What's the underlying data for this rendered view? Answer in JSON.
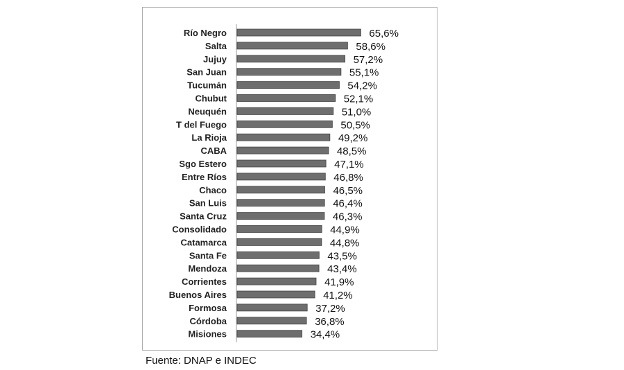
{
  "chart_data": {
    "type": "bar",
    "orientation": "horizontal",
    "categories": [
      "Río Negro",
      "Salta",
      "Jujuy",
      "San Juan",
      "Tucumán",
      "Chubut",
      "Neuquén",
      "T del Fuego",
      "La Rioja",
      "CABA",
      "Sgo Estero",
      "Entre Ríos",
      "Chaco",
      "San Luis",
      "Santa Cruz",
      "Consolidado",
      "Catamarca",
      "Santa Fe",
      "Mendoza",
      "Corrientes",
      "Buenos Aires",
      "Formosa",
      "Córdoba",
      "Misiones"
    ],
    "values": [
      65.6,
      58.6,
      57.2,
      55.1,
      54.2,
      52.1,
      51.0,
      50.5,
      49.2,
      48.5,
      47.1,
      46.8,
      46.5,
      46.4,
      46.3,
      44.9,
      44.8,
      43.5,
      43.4,
      41.9,
      41.2,
      37.2,
      36.8,
      34.4
    ],
    "data_labels": [
      "65,6%",
      "58,6%",
      "57,2%",
      "55,1%",
      "54,2%",
      "52,1%",
      "51,0%",
      "50,5%",
      "49,2%",
      "48,5%",
      "47,1%",
      "46,8%",
      "46,5%",
      "46,4%",
      "46,3%",
      "44,9%",
      "44,8%",
      "43,5%",
      "43,4%",
      "41,9%",
      "41,2%",
      "37,2%",
      "36,8%",
      "34,4%"
    ],
    "xlim": [
      0,
      70
    ],
    "grid": false,
    "bar_color": "#6e6e6e"
  },
  "source": "Fuente: DNAP e INDEC"
}
